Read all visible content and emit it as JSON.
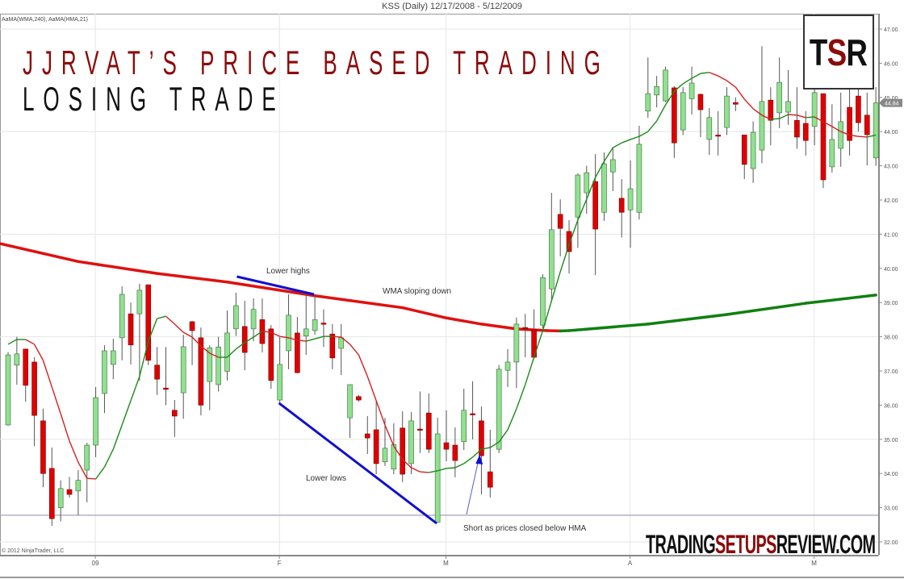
{
  "chart_data": {
    "type": "candlestick",
    "title": "KSS (Daily)  12/17/2008 - 5/12/2009",
    "indicator_label": "AaMA(WMA,240), AaMA(HMA,21)",
    "ylim": [
      31.7,
      47.4
    ],
    "y_ticks": [
      "47.00",
      "46.00",
      "45.00",
      "44.00",
      "43.00",
      "42.00",
      "41.00",
      "40.00",
      "39.00",
      "38.00",
      "37.00",
      "36.00",
      "35.00",
      "34.00",
      "33.00",
      "32.00"
    ],
    "x_ticks": [
      {
        "label": "09",
        "bar": 10
      },
      {
        "label": "F",
        "bar": 31
      },
      {
        "label": "M",
        "bar": 50
      },
      {
        "label": "A",
        "bar": 71
      },
      {
        "label": "M",
        "bar": 92
      }
    ],
    "last_price": "44.84",
    "grid": true,
    "colors": {
      "up": "#90e090",
      "down": "#e00000",
      "wick": "#555555",
      "wma_down": "#e01010",
      "wma_up": "#108010",
      "hma_up": "#1a8a1a",
      "hma_down": "#d42020",
      "annotation": "#1010d0",
      "support": "#9a9ab8"
    },
    "candles_ohlc": [
      [
        35.42,
        37.55,
        35.4,
        37.47
      ],
      [
        37.17,
        38.0,
        36.6,
        37.5
      ],
      [
        37.64,
        37.64,
        36.1,
        36.58
      ],
      [
        37.26,
        37.4,
        34.8,
        35.7
      ],
      [
        35.54,
        35.9,
        33.6,
        34.0
      ],
      [
        34.15,
        34.76,
        32.47,
        32.68
      ],
      [
        33.0,
        33.8,
        32.6,
        33.56
      ],
      [
        33.53,
        33.9,
        33.3,
        33.39
      ],
      [
        33.49,
        34.1,
        32.78,
        33.8
      ],
      [
        34.1,
        34.9,
        33.16,
        34.83
      ],
      [
        34.83,
        36.53,
        34.48,
        36.22
      ],
      [
        36.34,
        37.75,
        35.77,
        37.59
      ],
      [
        37.19,
        37.94,
        36.76,
        37.59
      ],
      [
        37.97,
        39.47,
        37.31,
        39.24
      ],
      [
        38.67,
        39.0,
        37.19,
        37.76
      ],
      [
        38.67,
        39.55,
        36.72,
        39.36
      ],
      [
        39.52,
        39.52,
        37.17,
        37.31
      ],
      [
        37.17,
        37.7,
        36.3,
        36.76
      ],
      [
        36.5,
        37.7,
        36.0,
        36.46
      ],
      [
        35.85,
        36.15,
        35.07,
        35.68
      ],
      [
        36.36,
        38.06,
        35.6,
        37.71
      ],
      [
        38.44,
        38.46,
        37.17,
        38.18
      ],
      [
        37.97,
        38.27,
        35.7,
        36.0
      ],
      [
        36.69,
        37.75,
        35.85,
        37.68
      ],
      [
        36.6,
        38.0,
        36.4,
        37.7
      ],
      [
        36.99,
        38.77,
        36.72,
        38.11
      ],
      [
        38.23,
        39.29,
        38.02,
        38.91
      ],
      [
        38.3,
        39.05,
        37.02,
        37.54
      ],
      [
        38.23,
        39.12,
        37.87,
        38.8
      ],
      [
        38.5,
        39.12,
        37.54,
        37.8
      ],
      [
        38.23,
        38.34,
        36.48,
        36.72
      ],
      [
        36.15,
        37.99,
        36.06,
        37.19
      ],
      [
        37.59,
        39.24,
        37.05,
        38.63
      ],
      [
        38.11,
        38.58,
        36.93,
        36.95
      ],
      [
        38.02,
        39.24,
        37.47,
        38.23
      ],
      [
        38.18,
        39.24,
        38.06,
        38.5
      ],
      [
        38.4,
        38.8,
        37.7,
        38.38
      ],
      [
        38.08,
        38.37,
        37.05,
        37.38
      ],
      [
        37.66,
        38.37,
        36.88,
        37.97
      ],
      [
        35.63,
        36.6,
        35.04,
        36.6
      ],
      [
        36.25,
        36.3,
        36.1,
        36.15
      ],
      [
        35.16,
        35.68,
        34.57,
        35.04
      ],
      [
        35.28,
        36.13,
        33.98,
        34.29
      ],
      [
        34.34,
        35.63,
        34.22,
        34.74
      ],
      [
        34.13,
        35.47,
        33.98,
        34.85
      ],
      [
        35.33,
        35.82,
        33.75,
        33.98
      ],
      [
        34.29,
        35.8,
        33.98,
        35.54
      ],
      [
        35.3,
        36.4,
        34.6,
        35.28
      ],
      [
        35.77,
        36.34,
        34.6,
        34.71
      ],
      [
        32.57,
        35.63,
        32.57,
        35.16
      ],
      [
        34.9,
        35.85,
        34.36,
        34.71
      ],
      [
        34.83,
        35.35,
        33.89,
        34.38
      ],
      [
        34.93,
        36.48,
        34.69,
        35.85
      ],
      [
        35.75,
        36.7,
        35.0,
        35.73
      ],
      [
        35.54,
        35.96,
        33.39,
        34.52
      ],
      [
        34.05,
        35.28,
        33.3,
        33.6
      ],
      [
        34.71,
        37.17,
        34.6,
        37.05
      ],
      [
        37.02,
        37.64,
        36.53,
        37.26
      ],
      [
        37.26,
        38.56,
        36.5,
        38.37
      ],
      [
        38.27,
        38.67,
        37.4,
        38.23
      ],
      [
        38.2,
        38.8,
        37.35,
        37.4
      ],
      [
        38.34,
        39.83,
        38.25,
        39.73
      ],
      [
        39.4,
        42.21,
        39.03,
        41.13
      ],
      [
        41.58,
        42.02,
        40.35,
        41.17
      ],
      [
        41.08,
        41.41,
        39.85,
        40.49
      ],
      [
        41.5,
        42.78,
        40.6,
        42.73
      ],
      [
        42.21,
        43.0,
        41.6,
        42.8
      ],
      [
        42.54,
        43.34,
        39.8,
        41.15
      ],
      [
        41.64,
        43.39,
        41.39,
        43.06
      ],
      [
        42.82,
        43.53,
        42.26,
        43.18
      ],
      [
        42.05,
        42.61,
        40.9,
        41.64
      ],
      [
        41.71,
        43.16,
        40.6,
        42.33
      ],
      [
        41.64,
        44.17,
        41.43,
        43.63
      ],
      [
        44.6,
        46.17,
        44.4,
        45.11
      ],
      [
        45.07,
        45.63,
        44.71,
        45.32
      ],
      [
        44.9,
        45.9,
        44.86,
        45.8
      ],
      [
        45.28,
        45.33,
        43.23,
        43.67
      ],
      [
        44.05,
        45.3,
        43.9,
        45.14
      ],
      [
        44.96,
        45.9,
        44.5,
        45.42
      ],
      [
        45.09,
        45.11,
        43.84,
        44.64
      ],
      [
        43.77,
        44.69,
        43.32,
        44.41
      ],
      [
        43.9,
        44.6,
        43.3,
        43.88
      ],
      [
        44.12,
        45.3,
        43.9,
        45.04
      ],
      [
        44.85,
        45.0,
        44.6,
        44.8
      ],
      [
        43.9,
        43.9,
        42.61,
        43.04
      ],
      [
        42.92,
        44.3,
        42.5,
        43.98
      ],
      [
        43.46,
        46.5,
        43.08,
        44.88
      ],
      [
        44.92,
        45.3,
        43.6,
        44.33
      ],
      [
        44.55,
        46.17,
        44.1,
        45.44
      ],
      [
        44.57,
        45.8,
        44.2,
        44.88
      ],
      [
        44.33,
        45.3,
        43.5,
        43.84
      ],
      [
        44.24,
        44.6,
        43.3,
        43.74
      ],
      [
        44.15,
        45.6,
        43.6,
        45.14
      ],
      [
        45.11,
        45.11,
        42.35,
        42.59
      ],
      [
        42.97,
        44.8,
        42.8,
        43.77
      ],
      [
        43.51,
        45.14,
        42.97,
        44.29
      ],
      [
        44.71,
        45.3,
        43.3,
        43.74
      ],
      [
        45.04,
        45.3,
        44.0,
        44.26
      ],
      [
        44.48,
        45.14,
        43.01,
        43.91
      ],
      [
        43.23,
        45.3,
        43.0,
        44.84
      ]
    ],
    "hma_21": [
      37.78,
      37.92,
      37.92,
      37.78,
      37.31,
      36.53,
      35.75,
      34.95,
      34.33,
      33.86,
      33.84,
      34.19,
      34.71,
      35.42,
      36.13,
      36.84,
      37.87,
      38.53,
      38.6,
      38.37,
      38.13,
      37.99,
      37.73,
      37.52,
      37.4,
      37.4,
      37.64,
      37.83,
      37.99,
      38.16,
      38.13,
      38.01,
      37.97,
      37.9,
      37.87,
      37.94,
      38.01,
      38.01,
      37.99,
      37.78,
      37.47,
      36.84,
      36.13,
      35.42,
      34.8,
      34.41,
      34.17,
      34.05,
      34.03,
      34.08,
      34.15,
      34.17,
      34.29,
      34.48,
      34.71,
      34.76,
      34.92,
      35.28,
      35.89,
      36.6,
      37.4,
      38.18,
      39.05,
      39.9,
      40.7,
      41.41,
      42.02,
      42.66,
      43.13,
      43.53,
      43.67,
      43.77,
      43.86,
      44.0,
      44.31,
      44.78,
      45.18,
      45.4,
      45.56,
      45.7,
      45.73,
      45.63,
      45.49,
      45.3,
      44.95,
      44.67,
      44.48,
      44.36,
      44.38,
      44.5,
      44.48,
      44.41,
      44.43,
      44.29,
      44.15,
      44.0,
      43.9,
      43.86,
      43.84,
      43.9
    ],
    "wma_240": [
      [
        -1,
        40.73
      ],
      [
        8,
        40.2
      ],
      [
        17,
        39.85
      ],
      [
        25,
        39.6
      ],
      [
        35,
        39.2
      ],
      [
        45,
        38.85
      ],
      [
        50,
        38.55
      ],
      [
        54,
        38.37
      ],
      [
        58,
        38.23
      ],
      [
        61.5,
        38.18
      ],
      [
        63,
        38.17
      ],
      [
        64,
        38.18
      ],
      [
        73,
        38.37
      ],
      [
        82,
        38.65
      ],
      [
        91,
        38.98
      ],
      [
        99,
        39.22
      ]
    ],
    "support_level": 32.78,
    "annotations": [
      {
        "text": "Lower highs",
        "line": [
          [
            26.1,
            39.76
          ],
          [
            34.9,
            39.24
          ]
        ]
      },
      {
        "text": "WMA sloping down"
      },
      {
        "text": "Lower lows",
        "line": [
          [
            30.9,
            36.06
          ],
          [
            48.9,
            32.54
          ]
        ]
      },
      {
        "text": "Short as prices closed below HMA",
        "arrow": [
          [
            52.3,
            32.8
          ],
          [
            53.8,
            34.55
          ]
        ]
      }
    ]
  },
  "headline": {
    "line1": "JJRVAT’S PRICE BASED TRADING",
    "line2": "LOSING TRADE"
  },
  "logo": {
    "text": "TSR",
    "brand_color": "#8b0b0b"
  },
  "watermark": {
    "part1": "TRADING",
    "part2": "SETUPS",
    "part3": "REVIEW.COM"
  },
  "copyright": "© 2012 NinjaTrader, LLC"
}
